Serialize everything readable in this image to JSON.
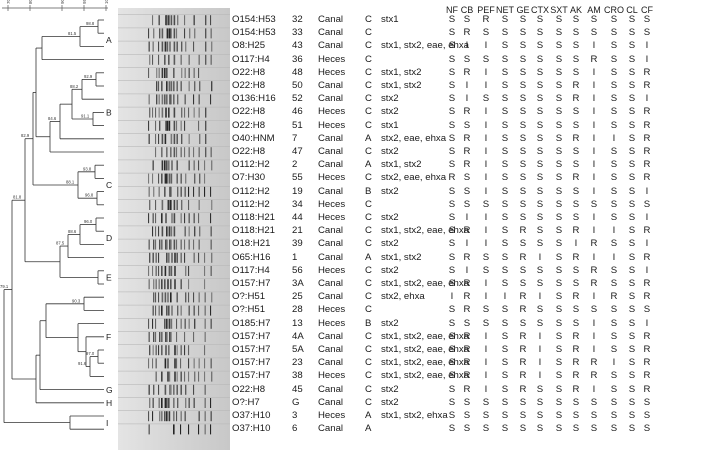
{
  "scale": {
    "ticks": [
      "70",
      "80",
      "90",
      "95",
      "100"
    ]
  },
  "clusters": [
    "A",
    "B",
    "C",
    "D",
    "E",
    "F",
    "G",
    "H",
    "I"
  ],
  "node_values": [
    "98.8",
    "81.5",
    "92.9",
    "88.2",
    "91.1",
    "84.6",
    "93.8",
    "88.1",
    "96.8",
    "82.9",
    "96.0",
    "88.6",
    "87.5",
    "81.8",
    "90.3",
    "97.0",
    "91.6",
    "79.1",
    "74.9"
  ],
  "antibiotics": [
    "NF",
    "CB",
    "PEF",
    "NET",
    "GE",
    "CTX",
    "SXT",
    "AK",
    "AM",
    "CRO",
    "CL",
    "CF"
  ],
  "strains": [
    {
      "serotype": "O154:H53",
      "strain": "32",
      "source": "Canal",
      "category": "C",
      "genes": "stx1",
      "res": [
        "S",
        "S",
        "R",
        "S",
        "S",
        "S",
        "S",
        "S",
        "S",
        "S",
        "S",
        "S"
      ]
    },
    {
      "serotype": "O154:H53",
      "strain": "33",
      "source": "Canal",
      "category": "C",
      "genes": "",
      "res": [
        "S",
        "R",
        "S",
        "S",
        "S",
        "S",
        "S",
        "S",
        "S",
        "S",
        "S",
        "S"
      ]
    },
    {
      "serotype": "O8:H25",
      "strain": "43",
      "source": "Canal",
      "category": "C",
      "genes": "stx1, stx2, eae, ehxa",
      "res": [
        "S",
        "I",
        "I",
        "S",
        "S",
        "S",
        "S",
        "S",
        "I",
        "S",
        "S",
        "I"
      ]
    },
    {
      "serotype": "O117:H4",
      "strain": "36",
      "source": "Heces",
      "category": "C",
      "genes": "",
      "res": [
        "S",
        "S",
        "S",
        "S",
        "S",
        "S",
        "S",
        "S",
        "R",
        "S",
        "S",
        "I"
      ]
    },
    {
      "serotype": "O22:H8",
      "strain": "48",
      "source": "Heces",
      "category": "C",
      "genes": "stx1, stx2",
      "res": [
        "S",
        "R",
        "I",
        "S",
        "S",
        "S",
        "S",
        "S",
        "I",
        "S",
        "S",
        "R"
      ]
    },
    {
      "serotype": "O22:H8",
      "strain": "50",
      "source": "Canal",
      "category": "C",
      "genes": "stx1, stx2",
      "res": [
        "S",
        "I",
        "I",
        "S",
        "S",
        "S",
        "S",
        "R",
        "I",
        "S",
        "S",
        "R"
      ]
    },
    {
      "serotype": "O136:H16",
      "strain": "52",
      "source": "Canal",
      "category": "C",
      "genes": "stx2",
      "res": [
        "S",
        "I",
        "S",
        "S",
        "S",
        "S",
        "S",
        "R",
        "I",
        "S",
        "S",
        "I"
      ]
    },
    {
      "serotype": "O22:H8",
      "strain": "46",
      "source": "Heces",
      "category": "C",
      "genes": "stx2",
      "res": [
        "S",
        "R",
        "I",
        "S",
        "S",
        "S",
        "S",
        "S",
        "I",
        "S",
        "S",
        "R"
      ]
    },
    {
      "serotype": "O22:H8",
      "strain": "51",
      "source": "Heces",
      "category": "C",
      "genes": "stx1",
      "res": [
        "S",
        "S",
        "I",
        "S",
        "S",
        "S",
        "S",
        "S",
        "I",
        "S",
        "S",
        "R"
      ]
    },
    {
      "serotype": "O40:HNM",
      "strain": "7",
      "source": "Canal",
      "category": "A",
      "genes": "stx2, eae, ehxa",
      "res": [
        "S",
        "R",
        "I",
        "S",
        "S",
        "S",
        "S",
        "R",
        "I",
        "I",
        "S",
        "R"
      ]
    },
    {
      "serotype": "O22:H8",
      "strain": "47",
      "source": "Canal",
      "category": "C",
      "genes": "stx2",
      "res": [
        "S",
        "R",
        "I",
        "S",
        "S",
        "S",
        "S",
        "S",
        "I",
        "S",
        "S",
        "R"
      ]
    },
    {
      "serotype": "O112:H2",
      "strain": "2",
      "source": "Canal",
      "category": "A",
      "genes": "stx1, stx2",
      "res": [
        "S",
        "R",
        "I",
        "S",
        "S",
        "S",
        "S",
        "S",
        "I",
        "S",
        "S",
        "R"
      ]
    },
    {
      "serotype": "O7:H30",
      "strain": "55",
      "source": "Heces",
      "category": "C",
      "genes": "stx2, eae, ehxa",
      "res": [
        "R",
        "S",
        "I",
        "S",
        "S",
        "S",
        "S",
        "R",
        "I",
        "S",
        "S",
        "R"
      ]
    },
    {
      "serotype": "O112:H2",
      "strain": "19",
      "source": "Canal",
      "category": "B",
      "genes": "stx2",
      "res": [
        "S",
        "S",
        "I",
        "S",
        "S",
        "S",
        "S",
        "S",
        "I",
        "S",
        "S",
        "I"
      ]
    },
    {
      "serotype": "O112:H2",
      "strain": "34",
      "source": "Heces",
      "category": "C",
      "genes": "",
      "res": [
        "S",
        "S",
        "S",
        "S",
        "S",
        "S",
        "S",
        "S",
        "S",
        "S",
        "S",
        "S"
      ]
    },
    {
      "serotype": "O118:H21",
      "strain": "44",
      "source": "Heces",
      "category": "C",
      "genes": "stx2",
      "res": [
        "S",
        "I",
        "I",
        "S",
        "S",
        "S",
        "S",
        "S",
        "I",
        "S",
        "S",
        "I"
      ]
    },
    {
      "serotype": "O118:H21",
      "strain": "21",
      "source": "Canal",
      "category": "C",
      "genes": "stx1, stx2, eae, ehxa",
      "res": [
        "S",
        "R",
        "I",
        "S",
        "R",
        "S",
        "S",
        "R",
        "I",
        "I",
        "S",
        "R"
      ]
    },
    {
      "serotype": "O18:H21",
      "strain": "39",
      "source": "Canal",
      "category": "C",
      "genes": "stx2",
      "res": [
        "S",
        "I",
        "I",
        "S",
        "S",
        "S",
        "S",
        "I",
        "R",
        "S",
        "S",
        "I"
      ]
    },
    {
      "serotype": "O65:H16",
      "strain": "1",
      "source": "Canal",
      "category": "A",
      "genes": "stx1, stx2",
      "res": [
        "S",
        "R",
        "S",
        "S",
        "R",
        "I",
        "S",
        "R",
        "I",
        "I",
        "S",
        "R"
      ]
    },
    {
      "serotype": "O117:H4",
      "strain": "56",
      "source": "Heces",
      "category": "C",
      "genes": "stx2",
      "res": [
        "S",
        "I",
        "S",
        "S",
        "S",
        "S",
        "S",
        "S",
        "R",
        "S",
        "S",
        "I"
      ]
    },
    {
      "serotype": "O157:H7",
      "strain": "3A",
      "source": "Canal",
      "category": "C",
      "genes": "stx1, stx2, eae, ehxa",
      "res": [
        "S",
        "R",
        "I",
        "S",
        "S",
        "S",
        "S",
        "S",
        "R",
        "S",
        "S",
        "R"
      ]
    },
    {
      "serotype": "O?:H51",
      "strain": "25",
      "source": "Canal",
      "category": "C",
      "genes": "stx2, ehxa",
      "res": [
        "I",
        "R",
        "I",
        "I",
        "R",
        "I",
        "S",
        "R",
        "I",
        "R",
        "S",
        "R"
      ]
    },
    {
      "serotype": "O?:H51",
      "strain": "28",
      "source": "Heces",
      "category": "C",
      "genes": "",
      "res": [
        "S",
        "R",
        "S",
        "S",
        "R",
        "S",
        "S",
        "S",
        "S",
        "S",
        "S",
        "S"
      ]
    },
    {
      "serotype": "O185:H7",
      "strain": "13",
      "source": "Heces",
      "category": "B",
      "genes": "stx2",
      "res": [
        "S",
        "S",
        "S",
        "S",
        "S",
        "S",
        "S",
        "S",
        "I",
        "S",
        "S",
        "I"
      ]
    },
    {
      "serotype": "O157:H7",
      "strain": "4A",
      "source": "Canal",
      "category": "C",
      "genes": "stx1, stx2, eae, ehxa",
      "res": [
        "S",
        "R",
        "I",
        "S",
        "R",
        "I",
        "S",
        "R",
        "I",
        "S",
        "S",
        "R"
      ]
    },
    {
      "serotype": "O157:H7",
      "strain": "5A",
      "source": "Canal",
      "category": "C",
      "genes": "stx1, stx2, eae, ehxa",
      "res": [
        "S",
        "R",
        "I",
        "S",
        "R",
        "I",
        "S",
        "R",
        "I",
        "S",
        "S",
        "R"
      ]
    },
    {
      "serotype": "O157:H7",
      "strain": "23",
      "source": "Canal",
      "category": "C",
      "genes": "stx1, stx2, eae, ehxa",
      "res": [
        "S",
        "R",
        "I",
        "S",
        "R",
        "I",
        "S",
        "R",
        "R",
        "I",
        "S",
        "R"
      ]
    },
    {
      "serotype": "O157:H7",
      "strain": "38",
      "source": "Heces",
      "category": "C",
      "genes": "stx1, stx2, eae, ehxa",
      "res": [
        "S",
        "R",
        "I",
        "S",
        "R",
        "I",
        "S",
        "R",
        "R",
        "S",
        "S",
        "R"
      ]
    },
    {
      "serotype": "O22:H8",
      "strain": "45",
      "source": "Canal",
      "category": "C",
      "genes": "stx2",
      "res": [
        "S",
        "R",
        "I",
        "S",
        "R",
        "S",
        "S",
        "R",
        "I",
        "S",
        "S",
        "R"
      ]
    },
    {
      "serotype": "O?:H7",
      "strain": "G",
      "source": "Canal",
      "category": "C",
      "genes": "stx2",
      "res": [
        "S",
        "S",
        "S",
        "S",
        "S",
        "S",
        "S",
        "S",
        "S",
        "S",
        "S",
        "S"
      ]
    },
    {
      "serotype": "O37:H10",
      "strain": "3",
      "source": "Heces",
      "category": "A",
      "genes": "stx1, stx2, ehxa",
      "res": [
        "S",
        "S",
        "S",
        "S",
        "S",
        "S",
        "S",
        "S",
        "S",
        "S",
        "S",
        "S"
      ]
    },
    {
      "serotype": "O37:H10",
      "strain": "6",
      "source": "Canal",
      "category": "A",
      "genes": "",
      "res": [
        "S",
        "S",
        "S",
        "S",
        "S",
        "S",
        "S",
        "S",
        "S",
        "S",
        "S",
        "S"
      ]
    }
  ]
}
